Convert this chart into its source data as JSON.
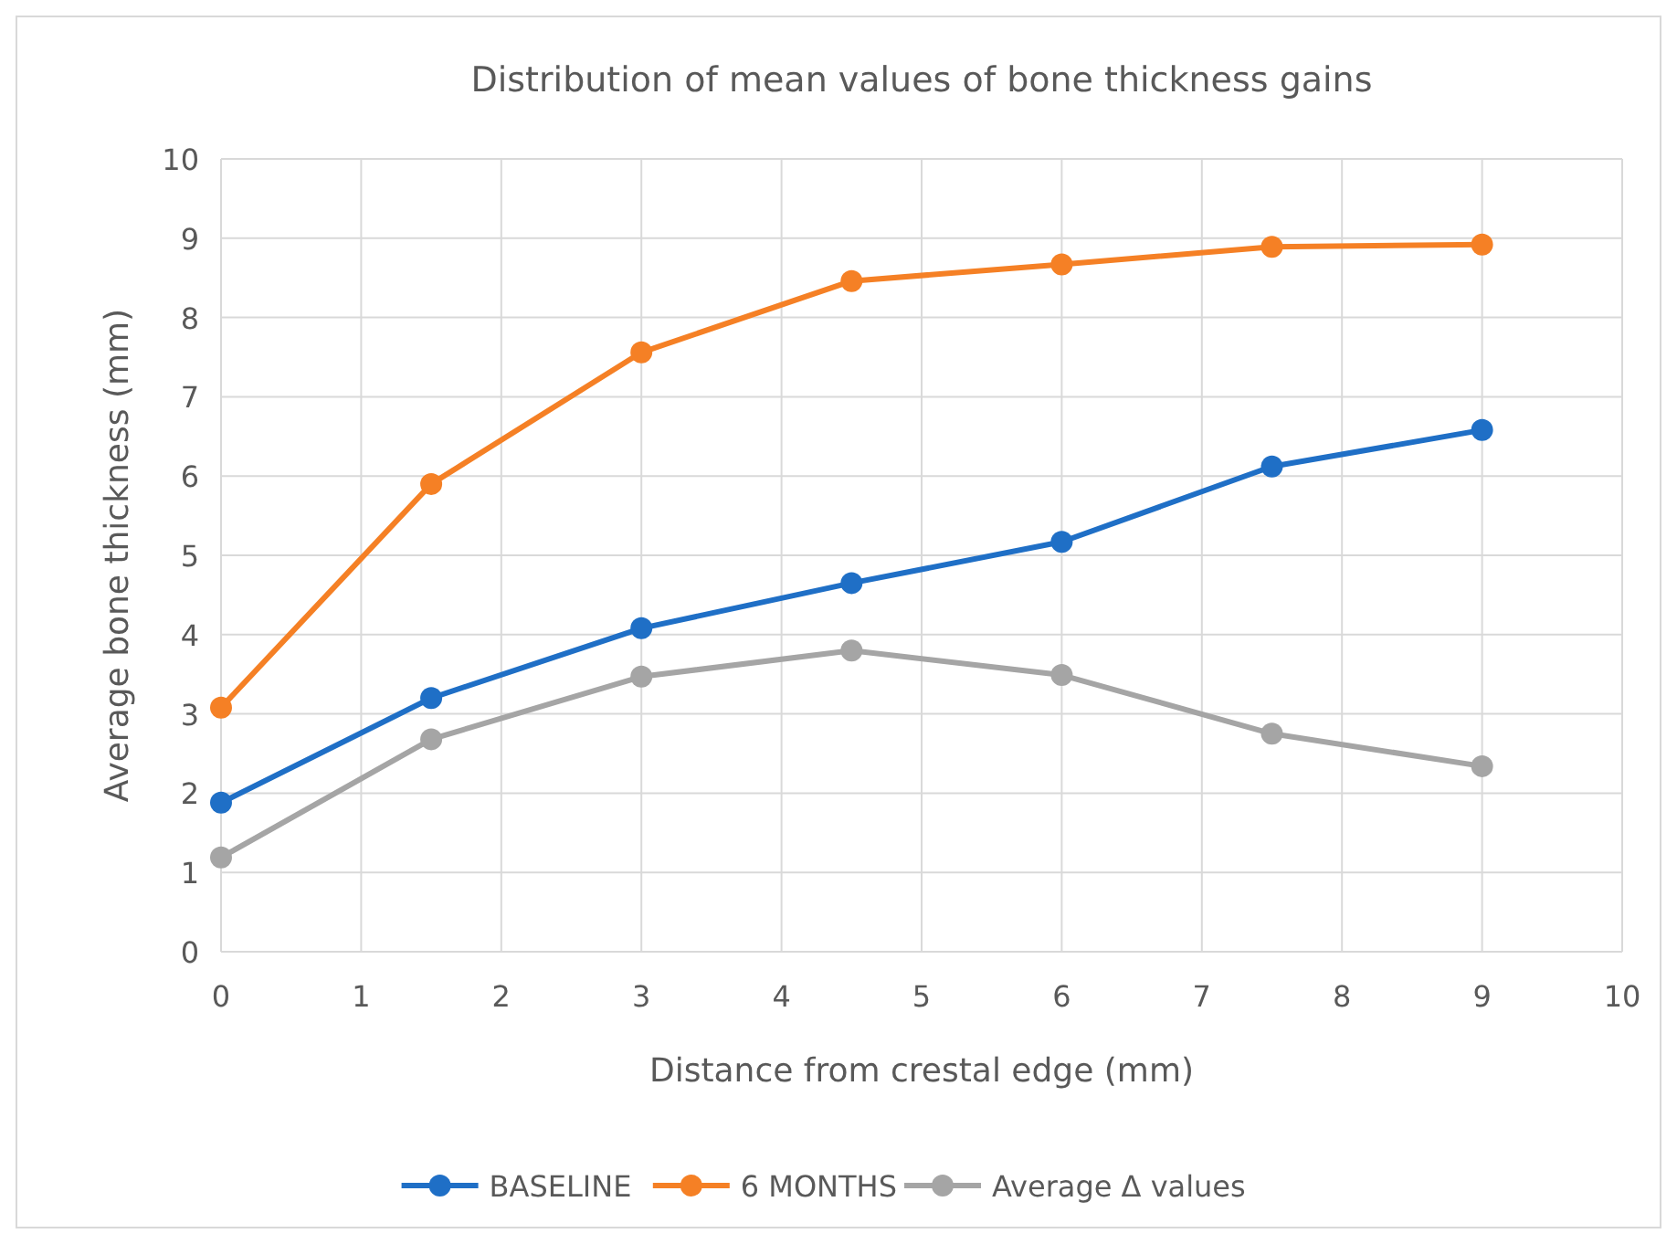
{
  "chart_data": {
    "type": "line",
    "title": "Distribution of mean values of bone thickness gains",
    "xlabel": "Distance from crestal edge (mm)",
    "ylabel": "Average bone thickness (mm)",
    "x": [
      0,
      1.5,
      3,
      4.5,
      6,
      7.5,
      9
    ],
    "series": [
      {
        "name": "BASELINE",
        "color": "#1f6fc6",
        "values": [
          1.88,
          3.2,
          4.08,
          4.65,
          5.17,
          6.12,
          6.58
        ]
      },
      {
        "name": "6 MONTHS",
        "color": "#f58025",
        "values": [
          3.08,
          5.9,
          7.56,
          8.46,
          8.67,
          8.89,
          8.92
        ]
      },
      {
        "name": "Average Δ values",
        "color": "#a5a5a5",
        "values": [
          1.19,
          2.68,
          3.47,
          3.8,
          3.49,
          2.75,
          2.34
        ]
      }
    ],
    "xlim": [
      0,
      10
    ],
    "xticks": [
      0,
      1,
      2,
      3,
      4,
      5,
      6,
      7,
      8,
      9,
      10
    ],
    "ylim": [
      0,
      10
    ],
    "yticks": [
      0,
      1,
      2,
      3,
      4,
      5,
      6,
      7,
      8,
      9,
      10
    ],
    "grid": true,
    "legend": "bottom",
    "marker": "circle",
    "line_style": "solid"
  }
}
